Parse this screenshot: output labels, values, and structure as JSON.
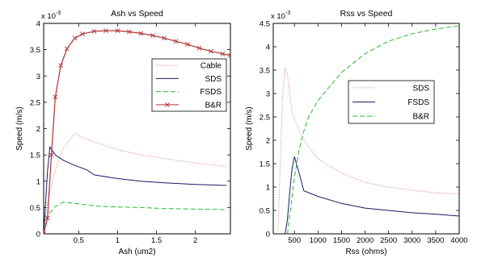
{
  "chart_data": [
    {
      "type": "line",
      "title": "Ash vs Speed",
      "xlabel": "Ash (um2)",
      "ylabel": "Speed (m/s)",
      "exponent_label": "x 10",
      "exponent_power": "-3",
      "xlim": [
        0.05,
        2.45
      ],
      "ylim": [
        0,
        4
      ],
      "xticks": [
        0.5,
        1,
        1.5,
        2
      ],
      "xtick_labels": [
        "0.5",
        "1",
        "1.5",
        "2"
      ],
      "yticks": [
        0,
        0.5,
        1,
        1.5,
        2,
        2.5,
        3,
        3.5,
        4
      ],
      "ytick_labels": [
        "0",
        "0.5",
        "1",
        "1.5",
        "2",
        "2.5",
        "3",
        "3.5",
        "4"
      ],
      "legend_position": "upper-right",
      "series": [
        {
          "name": "Cable",
          "color": "#d97c82",
          "style": "dotted",
          "x": [
            0.05,
            0.1,
            0.2,
            0.3,
            0.4,
            0.45,
            0.6,
            0.8,
            1.0,
            1.3,
            1.6,
            2.0,
            2.4
          ],
          "y": [
            0,
            0.6,
            1.2,
            1.62,
            1.82,
            1.9,
            1.8,
            1.7,
            1.6,
            1.5,
            1.43,
            1.35,
            1.28
          ]
        },
        {
          "name": "SDS",
          "color": "#1a1a66",
          "style": "solid",
          "x": [
            0.05,
            0.1,
            0.13,
            0.2,
            0.3,
            0.45,
            0.6,
            0.7,
            1.0,
            1.3,
            1.6,
            2.0,
            2.4
          ],
          "y": [
            0,
            1.2,
            1.65,
            1.5,
            1.4,
            1.3,
            1.22,
            1.12,
            1.05,
            1.0,
            0.97,
            0.94,
            0.92
          ]
        },
        {
          "name": "FSDS",
          "color": "#2db82d",
          "style": "dashed",
          "x": [
            0.05,
            0.1,
            0.2,
            0.3,
            0.45,
            0.6,
            0.8,
            1.0,
            1.3,
            1.6,
            2.0,
            2.4
          ],
          "y": [
            0,
            0.35,
            0.52,
            0.6,
            0.58,
            0.55,
            0.52,
            0.51,
            0.5,
            0.48,
            0.47,
            0.46
          ]
        },
        {
          "name": "B&R",
          "color": "#b03030",
          "style": "solid-marker",
          "x": [
            0.05,
            0.1,
            0.15,
            0.2,
            0.27,
            0.35,
            0.45,
            0.55,
            0.7,
            0.85,
            1.0,
            1.15,
            1.3,
            1.45,
            1.6,
            1.75,
            1.9,
            2.05,
            2.2,
            2.35,
            2.45
          ],
          "y": [
            0,
            0.3,
            1.5,
            2.6,
            3.2,
            3.52,
            3.72,
            3.8,
            3.85,
            3.86,
            3.86,
            3.84,
            3.81,
            3.77,
            3.72,
            3.66,
            3.6,
            3.53,
            3.47,
            3.42,
            3.39
          ]
        }
      ]
    },
    {
      "type": "line",
      "title": "Rss vs Speed",
      "xlabel": "Rss (ohms)",
      "ylabel": "Speed (m/s)",
      "exponent_label": "x 10",
      "exponent_power": "-3",
      "xlim": [
        50,
        4000
      ],
      "ylim": [
        0,
        4.5
      ],
      "xticks": [
        500,
        1000,
        1500,
        2000,
        2500,
        3000,
        3500,
        4000
      ],
      "xtick_labels": [
        "500",
        "1000",
        "1500",
        "2000",
        "2500",
        "3000",
        "3500",
        "4000"
      ],
      "yticks": [
        0,
        0.5,
        1,
        1.5,
        2,
        2.5,
        3,
        3.5,
        4,
        4.5
      ],
      "ytick_labels": [
        "0",
        "0.5",
        "1",
        "1.5",
        "2",
        "2.5",
        "3",
        "3.5",
        "4",
        "4.5"
      ],
      "legend_position": "upper-right",
      "series": [
        {
          "name": "SDS",
          "color": "#d97c82",
          "style": "dotted",
          "x": [
            150,
            200,
            250,
            300,
            350,
            450,
            600,
            800,
            1000,
            1500,
            2000,
            2500,
            3000,
            3500,
            4000
          ],
          "y": [
            0,
            1.5,
            3.0,
            3.55,
            3.4,
            2.6,
            2.2,
            1.85,
            1.6,
            1.3,
            1.1,
            1.0,
            0.93,
            0.88,
            0.85
          ]
        },
        {
          "name": "FSDS",
          "color": "#1a1a66",
          "style": "solid",
          "x": [
            300,
            350,
            400,
            450,
            500,
            600,
            700,
            1000,
            1500,
            2000,
            2500,
            3000,
            3500,
            4000
          ],
          "y": [
            0,
            0.3,
            0.9,
            1.4,
            1.65,
            1.3,
            0.92,
            0.8,
            0.65,
            0.55,
            0.5,
            0.45,
            0.42,
            0.38
          ]
        },
        {
          "name": "B&R",
          "color": "#2db82d",
          "style": "dashed",
          "x": [
            350,
            400,
            500,
            600,
            700,
            800,
            1000,
            1500,
            2000,
            2500,
            3000,
            3500,
            4000
          ],
          "y": [
            0,
            0.4,
            1.2,
            1.8,
            2.2,
            2.5,
            2.85,
            3.45,
            3.85,
            4.12,
            4.28,
            4.38,
            4.45
          ]
        }
      ]
    }
  ]
}
